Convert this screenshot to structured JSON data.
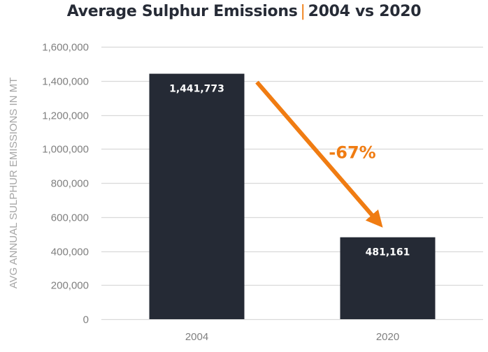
{
  "title": {
    "left": "Average Sulphur Emissions",
    "separator": "|",
    "right": "2004 vs 2020"
  },
  "chart_data": {
    "type": "bar",
    "title": "Average Sulphur Emissions | 2004 vs 2020",
    "categories": [
      "2004",
      "2020"
    ],
    "values": [
      1441773,
      481161
    ],
    "data_labels": [
      "1,441,773",
      "481,161"
    ],
    "xlabel": "",
    "ylabel": "AVG ANNUAL SULPHUR EMISSIONS IN MT",
    "ylim": [
      0,
      1600000
    ],
    "yticks": [
      0,
      200000,
      400000,
      600000,
      800000,
      1000000,
      1200000,
      1400000,
      1600000
    ],
    "ytick_labels": [
      "0",
      "200,000",
      "400,000",
      "600,000",
      "800,000",
      "1,000,000",
      "1,200,000",
      "1,400,000",
      "1,600,000"
    ],
    "grid": true,
    "legend": "none",
    "annotations": [
      {
        "type": "arrow",
        "from_category": "2004",
        "to_category": "2020",
        "text": "-67%"
      }
    ],
    "colors": {
      "bar": "#252a35",
      "accent": "#f07c12",
      "grid": "#d9d9d9",
      "tick_text": "#7f7f7f",
      "axis_title": "#a6a6a6"
    }
  }
}
